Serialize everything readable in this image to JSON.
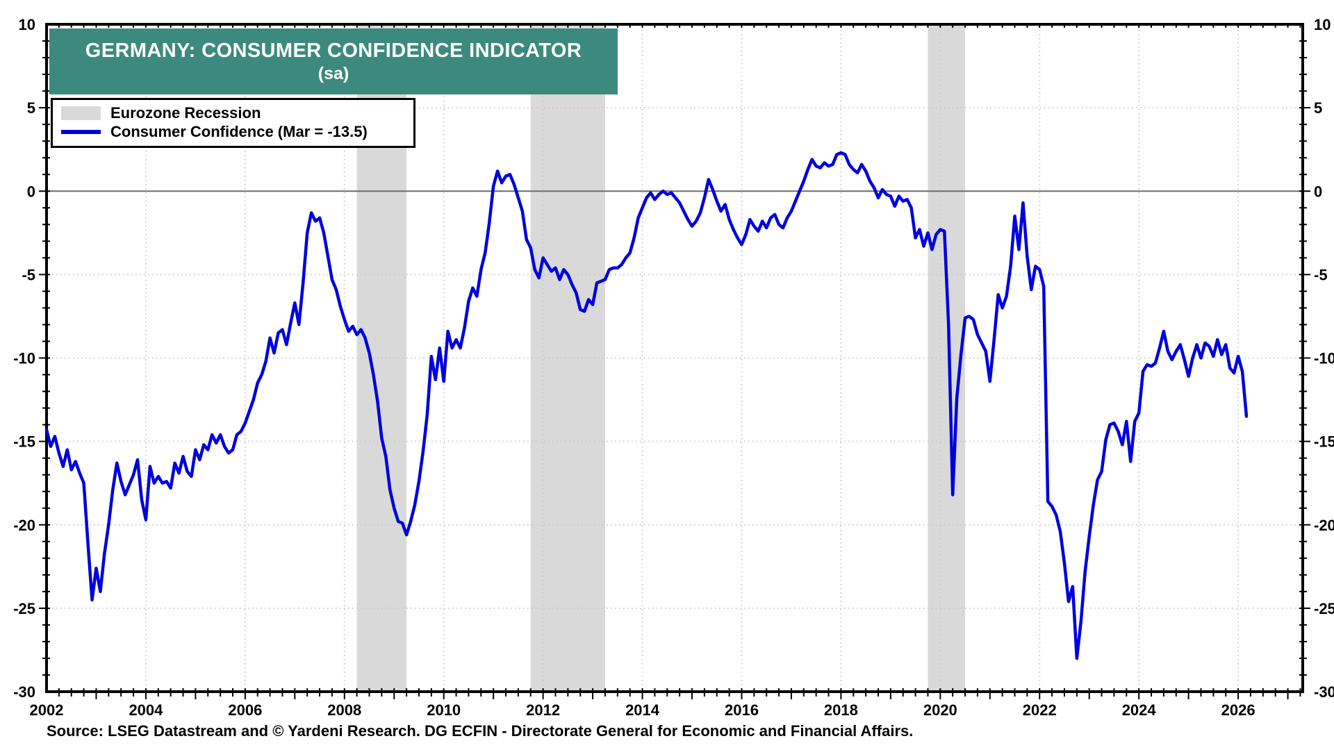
{
  "title": {
    "line1": "GERMANY: CONSUMER CONFIDENCE INDICATOR",
    "line2": "(sa)"
  },
  "legend": {
    "items": [
      {
        "label": "Eurozone Recession",
        "swatch": "recession-band"
      },
      {
        "label": "Consumer Confidence (Mar = -13.5)",
        "swatch": "data-line"
      }
    ]
  },
  "source": "Source: LSEG Datastream and © Yardeni Research. DG ECFIN - Directorate General for Economic and Financial Affairs.",
  "colors": {
    "title_bg": "#3C8A7E",
    "title_text": "#FFFFFF",
    "line": "#0000DE",
    "band": "#D9D9D9",
    "grid": "#C9C9C9",
    "zero_line": "#6B6B6B",
    "axis": "#000000"
  },
  "axes": {
    "x": {
      "min": 2002,
      "max": 2027.3,
      "label_years": [
        2002,
        2004,
        2006,
        2008,
        2010,
        2012,
        2014,
        2016,
        2018,
        2020,
        2022,
        2024,
        2026
      ],
      "grid_years": [
        2004,
        2006,
        2008,
        2010,
        2012,
        2014,
        2016,
        2018,
        2020,
        2022,
        2024,
        2026
      ],
      "minor_tick_step": 0.25,
      "year_tick_step": 1
    },
    "y": {
      "min": -30,
      "max": 10,
      "tick_labels": [
        10,
        5,
        0,
        -5,
        -10,
        -15,
        -20,
        -25,
        -30
      ],
      "grid_values": [
        5,
        -5,
        -10,
        -15,
        -20,
        -25
      ],
      "zero_value": 0,
      "minor_tick_step": 1,
      "major_tick_step": 5,
      "labels_on_both_sides": true
    }
  },
  "chart_data": {
    "type": "line",
    "title": "GERMANY: CONSUMER CONFIDENCE INDICATOR (sa)",
    "xlabel": "",
    "ylabel": "",
    "xlim": [
      2002,
      2027.3
    ],
    "ylim": [
      -30,
      10
    ],
    "grid": true,
    "legend_position": "top-left",
    "recession_bands": [
      [
        2008.25,
        2009.25
      ],
      [
        2011.75,
        2013.25
      ],
      [
        2019.75,
        2020.5
      ]
    ],
    "series": [
      {
        "name": "Consumer Confidence",
        "frequency": "monthly",
        "start_year": 2002,
        "start_month": 1,
        "last_point_label": "Mar = -13.5",
        "values": [
          -14.3,
          -15.3,
          -14.7,
          -15.7,
          -16.5,
          -15.5,
          -16.7,
          -16.2,
          -16.9,
          -17.5,
          -21.1,
          -24.5,
          -22.6,
          -24.0,
          -21.7,
          -20.0,
          -17.9,
          -16.3,
          -17.4,
          -18.2,
          -17.6,
          -17.0,
          -16.1,
          -18.5,
          -19.7,
          -16.5,
          -17.5,
          -17.1,
          -17.5,
          -17.4,
          -17.8,
          -16.3,
          -16.9,
          -15.9,
          -16.8,
          -17.1,
          -15.5,
          -16.1,
          -15.2,
          -15.5,
          -14.6,
          -15.1,
          -14.6,
          -15.3,
          -15.7,
          -15.5,
          -14.6,
          -14.4,
          -13.9,
          -13.2,
          -12.5,
          -11.5,
          -11.0,
          -10.2,
          -8.8,
          -9.7,
          -8.5,
          -8.3,
          -9.2,
          -7.9,
          -6.7,
          -8.0,
          -5.5,
          -2.5,
          -1.3,
          -1.8,
          -1.6,
          -2.5,
          -3.9,
          -5.3,
          -5.9,
          -6.9,
          -7.7,
          -8.4,
          -8.1,
          -8.6,
          -8.3,
          -8.8,
          -9.7,
          -11.0,
          -12.6,
          -14.8,
          -15.9,
          -17.9,
          -19.0,
          -19.8,
          -19.9,
          -20.6,
          -19.8,
          -18.8,
          -17.4,
          -15.6,
          -13.4,
          -9.9,
          -11.3,
          -9.4,
          -11.4,
          -8.4,
          -9.4,
          -8.9,
          -9.4,
          -8.2,
          -6.6,
          -5.8,
          -6.3,
          -4.7,
          -3.7,
          -1.9,
          0.3,
          1.2,
          0.5,
          0.9,
          1.0,
          0.4,
          -0.4,
          -1.2,
          -2.9,
          -3.4,
          -4.7,
          -5.2,
          -4.0,
          -4.4,
          -4.8,
          -4.6,
          -5.3,
          -4.7,
          -5.0,
          -5.6,
          -6.1,
          -7.1,
          -7.2,
          -6.5,
          -6.8,
          -5.5,
          -5.4,
          -5.3,
          -4.7,
          -4.6,
          -4.6,
          -4.4,
          -4.0,
          -3.7,
          -2.8,
          -1.6,
          -1.0,
          -0.4,
          -0.1,
          -0.5,
          -0.2,
          0.0,
          -0.2,
          -0.1,
          -0.4,
          -0.7,
          -1.2,
          -1.7,
          -2.1,
          -1.8,
          -1.3,
          -0.4,
          0.7,
          0.1,
          -0.6,
          -1.2,
          -0.8,
          -1.7,
          -2.3,
          -2.8,
          -3.2,
          -2.6,
          -1.7,
          -2.1,
          -2.4,
          -1.8,
          -2.2,
          -1.6,
          -1.4,
          -2.0,
          -2.2,
          -1.6,
          -1.2,
          -0.6,
          0.0,
          0.6,
          1.3,
          1.9,
          1.5,
          1.4,
          1.7,
          1.5,
          1.6,
          2.2,
          2.3,
          2.2,
          1.6,
          1.3,
          1.1,
          1.6,
          1.2,
          0.6,
          0.2,
          -0.4,
          0.1,
          -0.2,
          -0.3,
          -0.9,
          -0.3,
          -0.6,
          -0.5,
          -1.0,
          -2.8,
          -2.3,
          -3.3,
          -2.5,
          -3.5,
          -2.6,
          -2.3,
          -2.4,
          -8.0,
          -18.2,
          -12.4,
          -9.8,
          -7.6,
          -7.5,
          -7.7,
          -8.6,
          -9.1,
          -9.6,
          -11.4,
          -8.9,
          -6.2,
          -7.0,
          -6.3,
          -4.5,
          -1.5,
          -3.5,
          -0.7,
          -3.9,
          -5.9,
          -4.5,
          -4.7,
          -5.7,
          -18.6,
          -18.9,
          -19.4,
          -20.4,
          -22.3,
          -24.6,
          -23.7,
          -28.0,
          -25.8,
          -22.8,
          -20.7,
          -18.8,
          -17.3,
          -16.8,
          -14.9,
          -14.0,
          -13.9,
          -14.4,
          -15.2,
          -13.8,
          -16.2,
          -13.8,
          -13.3,
          -10.8,
          -10.4,
          -10.5,
          -10.3,
          -9.4,
          -8.4,
          -9.6,
          -10.1,
          -9.6,
          -9.2,
          -10.1,
          -11.1,
          -10.0,
          -9.2,
          -10.0,
          -9.1,
          -9.3,
          -9.9,
          -8.9,
          -9.8,
          -9.2,
          -10.6,
          -10.9,
          -9.9,
          -10.8,
          -13.5
        ]
      }
    ]
  }
}
